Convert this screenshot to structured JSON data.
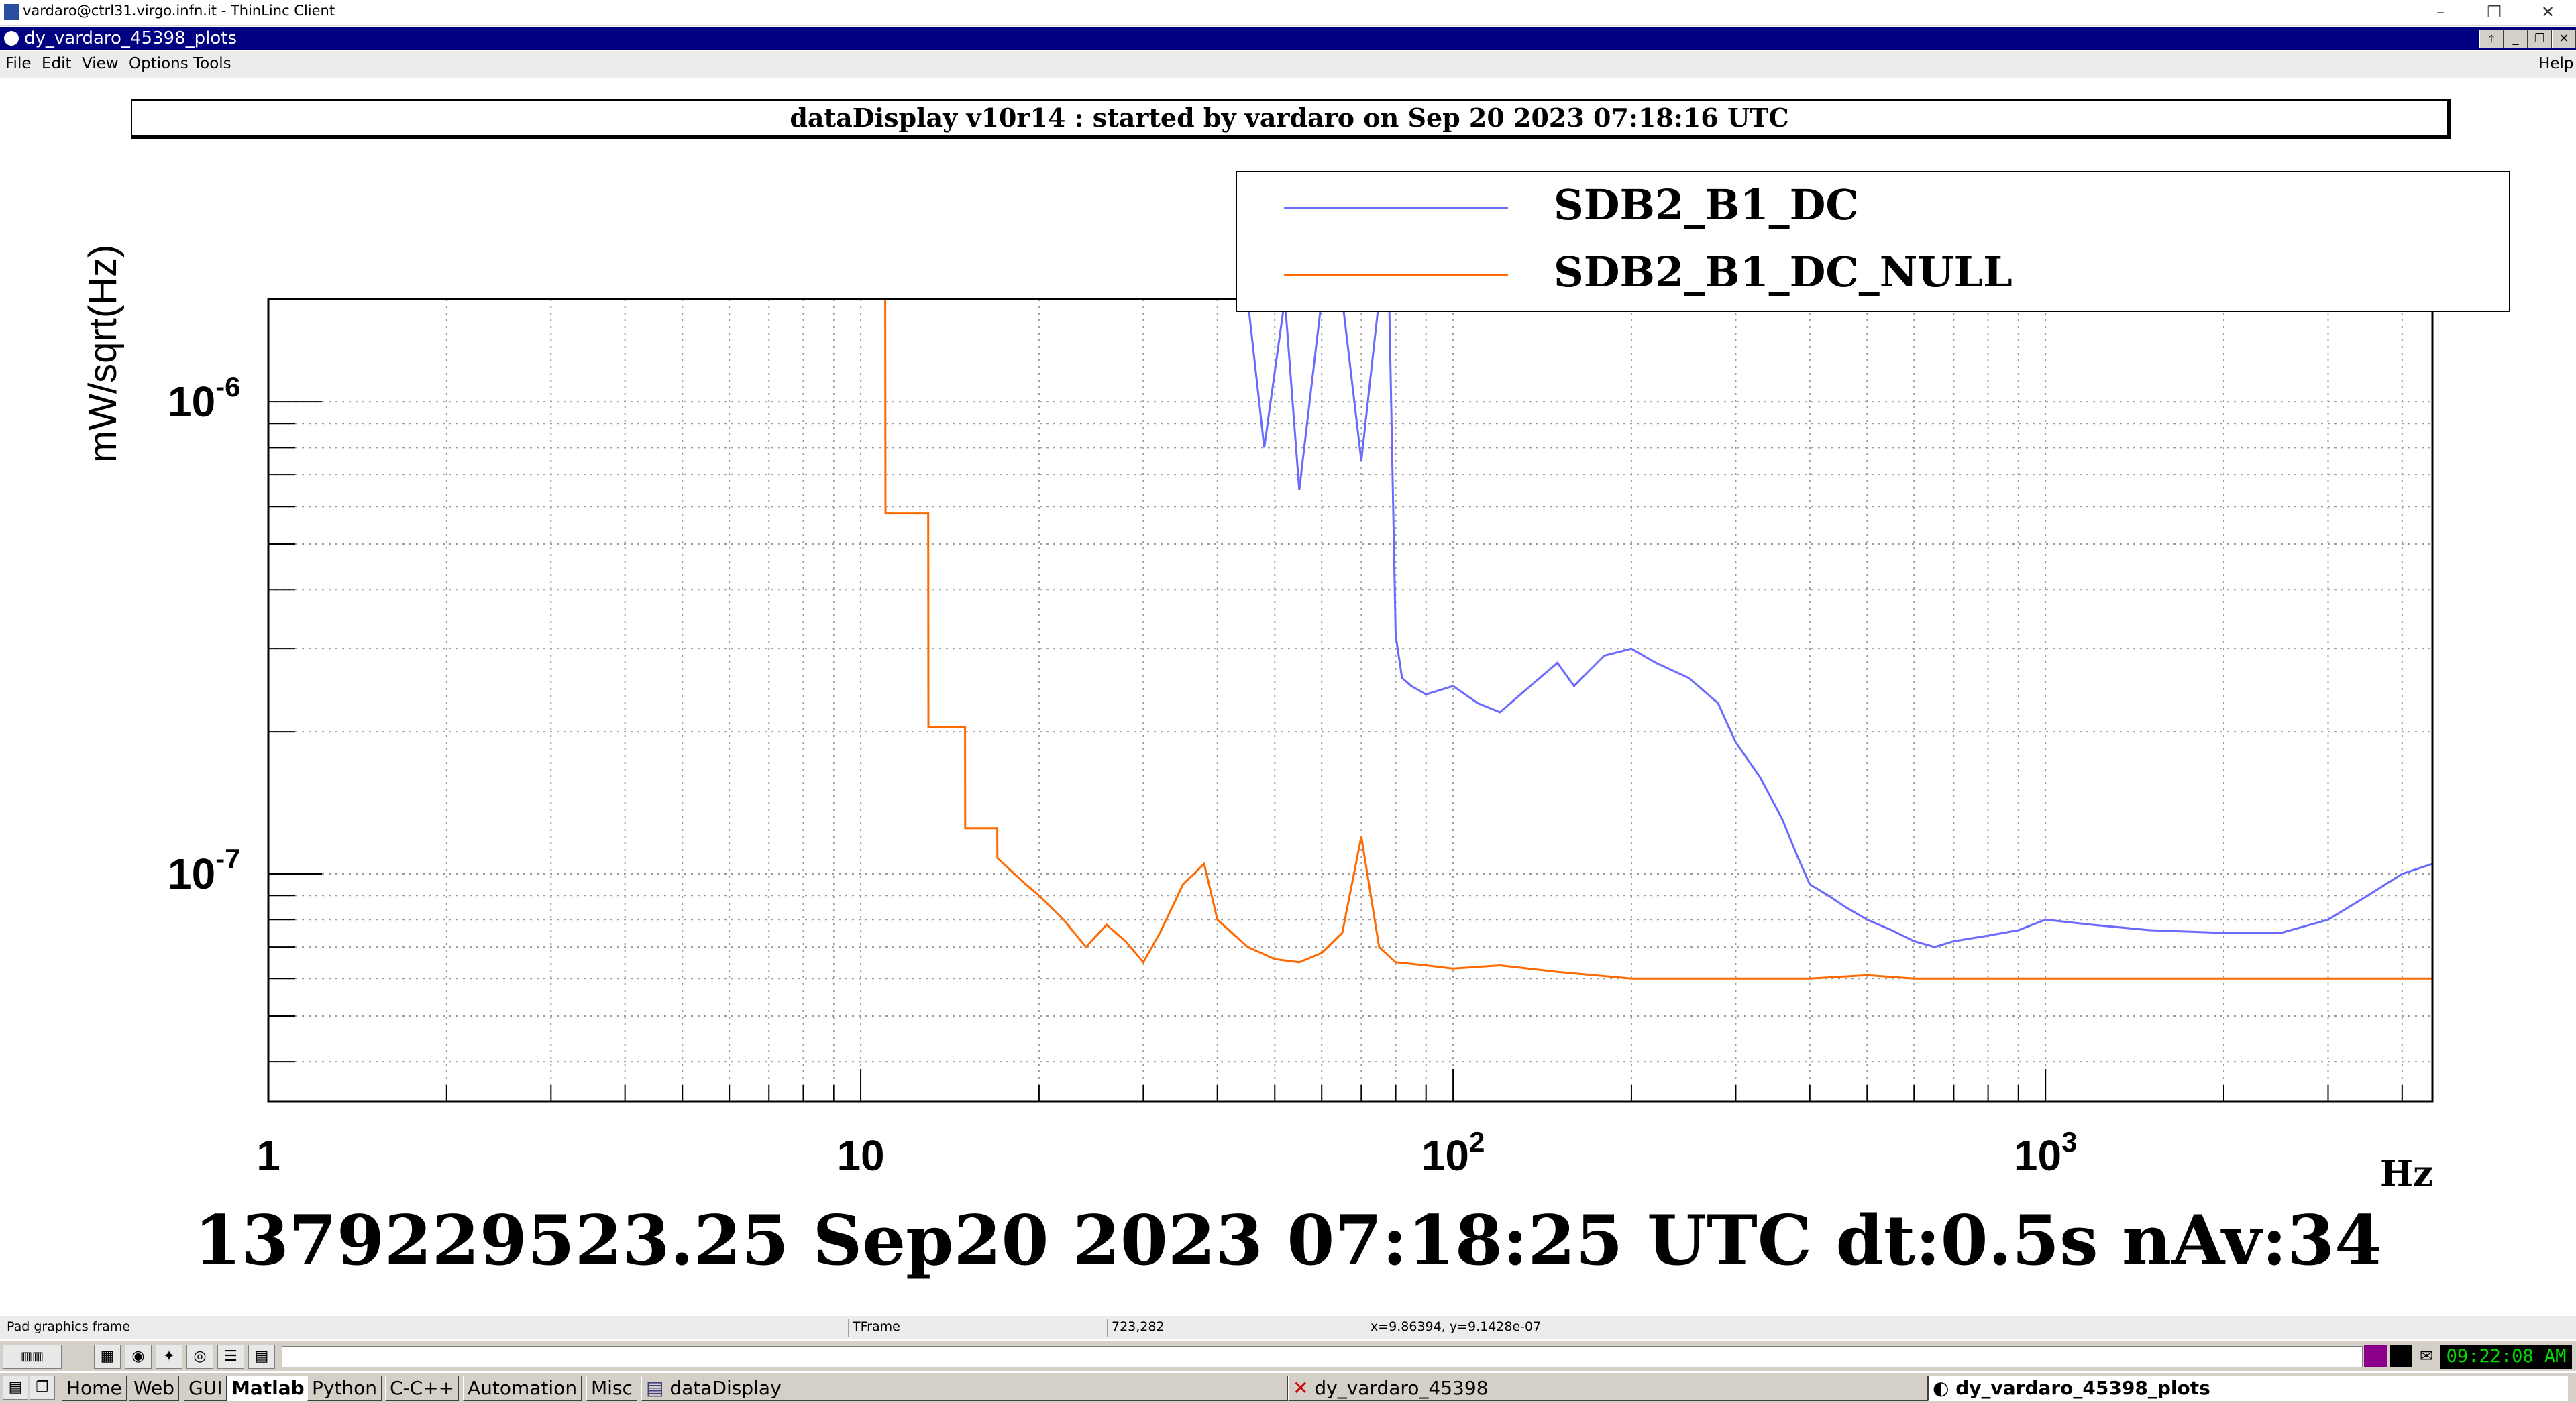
{
  "os_window": {
    "title": "vardaro@ctrl31.virgo.infn.it - ThinLinc Client",
    "controls": [
      "–",
      "❐",
      "✕"
    ]
  },
  "app_window": {
    "title": "dy_vardaro_45398_plots",
    "controls": [
      "⤒",
      "_",
      "❐",
      "✕"
    ]
  },
  "menu": {
    "items": [
      "File",
      "Edit",
      "View",
      "Options",
      "Tools"
    ],
    "help": "Help"
  },
  "header": {
    "text": "dataDisplay v10r14 : started by vardaro on Sep 20 2023 07:18:16 UTC"
  },
  "legend": {
    "entries": [
      {
        "name": "SDB2_B1_DC",
        "color": "#6a6aff"
      },
      {
        "name": "SDB2_B1_DC_NULL",
        "color": "#ff6a00"
      }
    ]
  },
  "chart_data": {
    "type": "line",
    "x_scale": "log",
    "y_scale": "log",
    "xlim": [
      1,
      4500
    ],
    "ylim": [
      3.3e-08,
      1.65e-06
    ],
    "ylabel": "mW/sqrt(Hz)",
    "xlabel": "Hz",
    "x_ticks": [
      {
        "value": 1,
        "base": "1",
        "exp": ""
      },
      {
        "value": 10,
        "base": "10",
        "exp": ""
      },
      {
        "value": 100,
        "base": "10",
        "exp": "2"
      },
      {
        "value": 1000,
        "base": "10",
        "exp": "3"
      }
    ],
    "y_ticks": [
      {
        "value": 1e-07,
        "base": "10",
        "exp": "-7"
      },
      {
        "value": 1e-06,
        "base": "10",
        "exp": "-6"
      }
    ],
    "grid": true,
    "series": [
      {
        "name": "SDB2_B1_DC",
        "color": "#6a6aff",
        "x": [
          1,
          45,
          48,
          52,
          55,
          60,
          65,
          70,
          75,
          78,
          80,
          82,
          85,
          90,
          100,
          110,
          120,
          130,
          140,
          150,
          160,
          170,
          180,
          200,
          220,
          250,
          280,
          300,
          330,
          360,
          380,
          400,
          430,
          460,
          500,
          550,
          600,
          650,
          700,
          800,
          900,
          1000,
          1200,
          1500,
          2000,
          2500,
          3000,
          3500,
          4000,
          4500
        ],
        "y": [
          1.65e-06,
          1.65e-06,
          8e-07,
          1.65e-06,
          6.5e-07,
          1.65e-06,
          1.65e-06,
          7.5e-07,
          1.65e-06,
          1.65e-06,
          3.2e-07,
          2.6e-07,
          2.5e-07,
          2.4e-07,
          2.5e-07,
          2.3e-07,
          2.2e-07,
          2.4e-07,
          2.6e-07,
          2.8e-07,
          2.5e-07,
          2.7e-07,
          2.9e-07,
          3e-07,
          2.8e-07,
          2.6e-07,
          2.3e-07,
          1.9e-07,
          1.6e-07,
          1.3e-07,
          1.1e-07,
          9.5e-08,
          9e-08,
          8.5e-08,
          8e-08,
          7.6e-08,
          7.2e-08,
          7e-08,
          7.2e-08,
          7.4e-08,
          7.6e-08,
          8e-08,
          7.8e-08,
          7.6e-08,
          7.5e-08,
          7.5e-08,
          8e-08,
          9e-08,
          1e-07,
          1.05e-07
        ]
      },
      {
        "name": "SDB2_B1_DC_NULL",
        "color": "#ff6a00",
        "x": [
          1,
          11,
          11.01,
          13,
          13.01,
          15,
          15.01,
          17,
          17.01,
          19,
          20,
          22,
          24,
          26,
          28,
          30,
          32,
          35,
          38,
          40,
          45,
          50,
          55,
          60,
          65,
          70,
          75,
          80,
          90,
          100,
          120,
          150,
          200,
          300,
          400,
          500,
          600,
          800,
          1000,
          1500,
          2000,
          3000,
          4500
        ],
        "y": [
          1.65e-06,
          1.65e-06,
          5.8e-07,
          5.8e-07,
          2.05e-07,
          2.05e-07,
          1.25e-07,
          1.25e-07,
          1.08e-07,
          9.5e-08,
          9e-08,
          8e-08,
          7e-08,
          7.8e-08,
          7.2e-08,
          6.5e-08,
          7.5e-08,
          9.5e-08,
          1.05e-07,
          8e-08,
          7e-08,
          6.6e-08,
          6.5e-08,
          6.8e-08,
          7.5e-08,
          1.2e-07,
          7e-08,
          6.5e-08,
          6.4e-08,
          6.3e-08,
          6.4e-08,
          6.2e-08,
          6e-08,
          6e-08,
          6e-08,
          6.1e-08,
          6e-08,
          6e-08,
          6e-08,
          6e-08,
          6e-08,
          6e-08,
          6e-08
        ]
      }
    ]
  },
  "footer": {
    "text": "1379229523.25 Sep20 2023 07:18:25 UTC dt:0.5s nAv:34"
  },
  "statusbar": {
    "object": "Pad graphics frame",
    "class": "TFrame",
    "pixel": "723,282",
    "coords": "x=9.86394, y=9.1428e-07"
  },
  "taskbar": {
    "top_icons": [
      "▦",
      "◉",
      "✦",
      "◎",
      "☰",
      "▤"
    ],
    "buttons": [
      "Home",
      "Web",
      "GUI",
      "Matlab",
      "Python",
      "C-C++",
      "Automation",
      "Misc"
    ],
    "active_button": "Matlab",
    "windows": [
      {
        "label": "dataDisplay",
        "icon": "▤"
      },
      {
        "label": "dy_vardaro_45398",
        "icon": "✕"
      },
      {
        "label": "dy_vardaro_45398_plots",
        "icon": "◐"
      }
    ],
    "clock": "09:22:08 AM",
    "tray_icons": [
      "■",
      "■",
      "✉"
    ]
  }
}
